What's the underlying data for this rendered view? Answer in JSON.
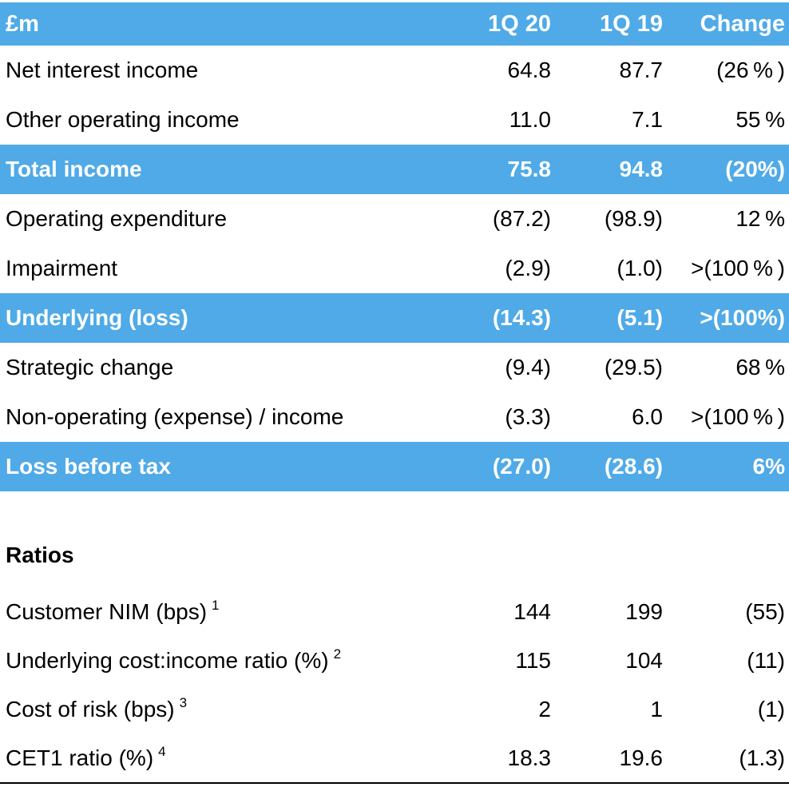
{
  "colors": {
    "highlight_blue": "#4FAAE7",
    "header_text": "#FFFFFF",
    "body_text": "#000000"
  },
  "table": {
    "header": {
      "col_label": "£m",
      "col_1q20": "1Q 20",
      "col_1q19": "1Q 19",
      "col_change": "Change"
    },
    "rows": [
      {
        "label": "Net interest income",
        "q1_20": "64.8",
        "q1_19": "87.7",
        "change": "(26 % )",
        "highlight": false
      },
      {
        "label": "Other operating income",
        "q1_20": "11.0",
        "q1_19": "7.1",
        "change": "55 %",
        "highlight": false
      },
      {
        "label": "Total income",
        "q1_20": "75.8",
        "q1_19": "94.8",
        "change": "(20%)",
        "highlight": true
      },
      {
        "label": "Operating expenditure",
        "q1_20": "(87.2)",
        "q1_19": "(98.9)",
        "change": "12 %",
        "highlight": false
      },
      {
        "label": "Impairment",
        "q1_20": "(2.9)",
        "q1_19": "(1.0)",
        "change": ">(100 % )",
        "highlight": false
      },
      {
        "label": "Underlying (loss)",
        "q1_20": "(14.3)",
        "q1_19": "(5.1)",
        "change": ">(100%)",
        "highlight": true
      },
      {
        "label": "Strategic change",
        "q1_20": "(9.4)",
        "q1_19": "(29.5)",
        "change": "68 %",
        "highlight": false
      },
      {
        "label": "Non-operating (expense) / income",
        "q1_20": "(3.3)",
        "q1_19": "6.0",
        "change": ">(100 % )",
        "highlight": false
      },
      {
        "label": "Loss before tax",
        "q1_20": "(27.0)",
        "q1_19": "(28.6)",
        "change": "6%",
        "highlight": true
      }
    ]
  },
  "ratios": {
    "heading": "Ratios",
    "rows": [
      {
        "label": "Customer NIM (bps)",
        "footnote": "1",
        "q1_20": "144",
        "q1_19": "199",
        "change": "(55)"
      },
      {
        "label": "Underlying cost:income ratio (%)",
        "footnote": "2",
        "q1_20": "115",
        "q1_19": "104",
        "change": "(11)"
      },
      {
        "label": "Cost of risk (bps)",
        "footnote": "3",
        "q1_20": "2",
        "q1_19": "1",
        "change": "(1)"
      },
      {
        "label": "CET1 ratio (%)",
        "footnote": "4",
        "q1_20": "18.3",
        "q1_19": "19.6",
        "change": "(1.3)"
      }
    ]
  }
}
